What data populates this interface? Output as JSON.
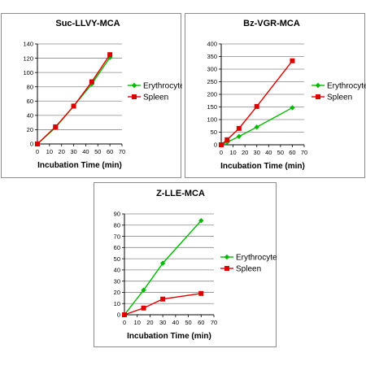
{
  "chart_data": [
    {
      "type": "line",
      "title": "Suc-LLVY-MCA",
      "xlabel": "Incubation Time (min)",
      "ylabel": "",
      "xlim": [
        0,
        70
      ],
      "ylim": [
        0,
        140
      ],
      "xticks": [
        0,
        10,
        20,
        30,
        40,
        50,
        60,
        70
      ],
      "yticks": [
        0,
        20,
        40,
        60,
        80,
        100,
        120,
        140
      ],
      "grid": "horizontal",
      "legend": "right",
      "series": [
        {
          "name": "Erythrocyte",
          "color": "#00bb00",
          "marker": "diamond",
          "x": [
            0,
            15,
            30,
            45,
            60
          ],
          "y": [
            0,
            23,
            53,
            84,
            121
          ]
        },
        {
          "name": "Spleen",
          "color": "#dd0000",
          "marker": "square",
          "x": [
            0,
            15,
            30,
            45,
            60
          ],
          "y": [
            0,
            24,
            53,
            87,
            125
          ]
        }
      ]
    },
    {
      "type": "line",
      "title": "Bz-VGR-MCA",
      "xlabel": "Incubation Time (min)",
      "ylabel": "",
      "xlim": [
        0,
        70
      ],
      "ylim": [
        0,
        400
      ],
      "xticks": [
        0,
        10,
        20,
        30,
        40,
        50,
        60,
        70
      ],
      "yticks": [
        0,
        50,
        100,
        150,
        200,
        250,
        300,
        350,
        400
      ],
      "grid": "horizontal",
      "legend": "right",
      "series": [
        {
          "name": "Erythrocyte",
          "color": "#00bb00",
          "marker": "diamond",
          "x": [
            0,
            5,
            15,
            30,
            60
          ],
          "y": [
            0,
            10,
            33,
            70,
            147
          ]
        },
        {
          "name": "Spleen",
          "color": "#dd0000",
          "marker": "square",
          "x": [
            0,
            5,
            15,
            30,
            60
          ],
          "y": [
            0,
            20,
            65,
            152,
            333
          ]
        }
      ]
    },
    {
      "type": "line",
      "title": "Z-LLE-MCA",
      "xlabel": "Incubation Time (min)",
      "ylabel": "",
      "xlim": [
        0,
        70
      ],
      "ylim": [
        0,
        90
      ],
      "xticks": [
        0,
        10,
        20,
        30,
        40,
        50,
        60,
        70
      ],
      "yticks": [
        0,
        10,
        20,
        30,
        40,
        50,
        60,
        70,
        80,
        90
      ],
      "grid": "horizontal",
      "legend": "right",
      "series": [
        {
          "name": "Erythrocyte",
          "color": "#00bb00",
          "marker": "diamond",
          "x": [
            0,
            15,
            30,
            60
          ],
          "y": [
            0,
            22,
            46,
            84
          ]
        },
        {
          "name": "Spleen",
          "color": "#dd0000",
          "marker": "square",
          "x": [
            0,
            15,
            30,
            60
          ],
          "y": [
            0,
            6,
            14,
            19
          ]
        }
      ]
    }
  ]
}
